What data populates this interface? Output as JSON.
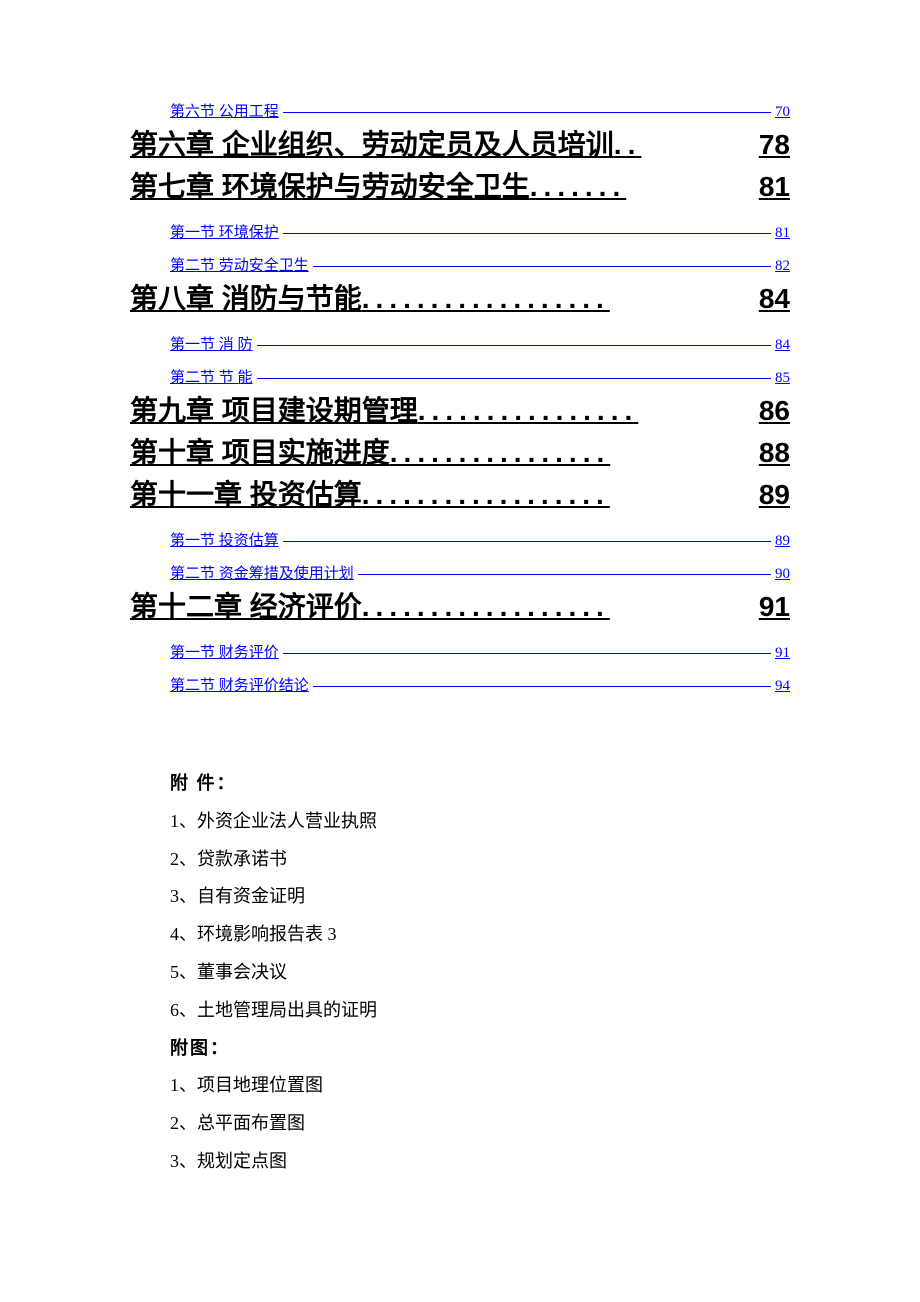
{
  "toc": [
    {
      "type": "section",
      "text": "第六节 公用工程",
      "page": "70"
    },
    {
      "type": "chapter",
      "text": "第六章 企业组织、劳动定员及人员培训",
      "dots": "..",
      "page": "78"
    },
    {
      "type": "chapter",
      "text": "第七章  环境保护与劳动安全卫生",
      "dots": ".......",
      "page": "81"
    },
    {
      "type": "spacer-small"
    },
    {
      "type": "section",
      "text": "第一节 环境保护",
      "page": "81"
    },
    {
      "type": "spacer-tiny"
    },
    {
      "type": "section",
      "text": "第二节 劳动安全卫生",
      "page": "82"
    },
    {
      "type": "chapter",
      "text": "第八章  消防与节能",
      "dots": "..................",
      "page": "84"
    },
    {
      "type": "spacer-small"
    },
    {
      "type": "section",
      "text": "第一节  消  防",
      "page": "84"
    },
    {
      "type": "spacer-tiny"
    },
    {
      "type": "section",
      "text": "第二节  节  能",
      "page": "85"
    },
    {
      "type": "chapter",
      "text": "第九章 项目建设期管理",
      "dots": "................",
      "page": "86"
    },
    {
      "type": "chapter",
      "text": "第十章  项目实施进度",
      "dots": "................",
      "page": "88"
    },
    {
      "type": "chapter",
      "text": "第十一章  投资估算",
      "dots": "..................",
      "page": "89"
    },
    {
      "type": "spacer-small"
    },
    {
      "type": "section",
      "text": "第一节 投资估算",
      "page": "89"
    },
    {
      "type": "spacer-tiny"
    },
    {
      "type": "section",
      "text": "第二节 资金筹措及使用计划",
      "page": "90"
    },
    {
      "type": "chapter",
      "text": "第十二章  经济评价",
      "dots": "..................",
      "page": "91"
    },
    {
      "type": "spacer-small"
    },
    {
      "type": "section",
      "text": "第一节 财务评价",
      "page": "91"
    },
    {
      "type": "spacer-tiny"
    },
    {
      "type": "section",
      "text": "第二节 财务评价结论",
      "page": "94"
    }
  ],
  "attachments": {
    "header1": "附  件：",
    "items1": [
      "1、外资企业法人营业执照",
      "2、贷款承诺书",
      "3、自有资金证明",
      "4、环境影响报告表 3",
      "5、董事会决议",
      "6、土地管理局出具的证明"
    ],
    "header2": "附图：",
    "items2": [
      "1、项目地理位置图",
      "2、总平面布置图",
      "3、规划定点图"
    ]
  },
  "colors": {
    "link": "#0000ff",
    "text": "#000000",
    "background": "#ffffff"
  }
}
